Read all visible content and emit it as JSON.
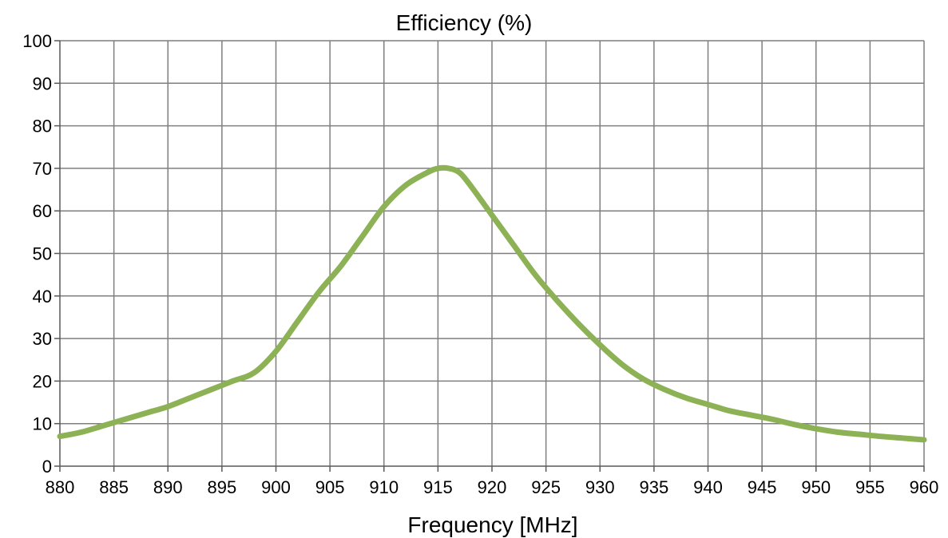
{
  "chart_data": {
    "type": "line",
    "title": "Efficiency (%)",
    "xlabel": "Frequency [MHz]",
    "ylabel": "",
    "xlim": [
      880,
      960
    ],
    "ylim": [
      0,
      100
    ],
    "x_ticks": [
      880,
      885,
      890,
      895,
      900,
      905,
      910,
      915,
      920,
      925,
      930,
      935,
      940,
      945,
      950,
      955,
      960
    ],
    "y_ticks": [
      0,
      10,
      20,
      30,
      40,
      50,
      60,
      70,
      80,
      90,
      100
    ],
    "grid": true,
    "series": [
      {
        "color": "#8db255",
        "x": [
          880,
          882,
          884,
          886,
          888,
          890,
          892,
          894,
          896,
          898,
          900,
          902,
          904,
          906,
          908,
          910,
          912,
          914,
          915,
          916,
          917,
          918,
          920,
          922,
          924,
          926,
          928,
          930,
          932,
          934,
          936,
          938,
          940,
          942,
          944,
          946,
          948,
          950,
          952,
          954,
          956,
          958,
          960
        ],
        "y": [
          7,
          8,
          9.5,
          11,
          12.5,
          14,
          16,
          18,
          20,
          22,
          27,
          34,
          41,
          47,
          54,
          61,
          66,
          69,
          70,
          70,
          69,
          66,
          59,
          52,
          45,
          39,
          33.5,
          28.5,
          24,
          20.5,
          18,
          16,
          14.5,
          13,
          12,
          11,
          9.8,
          8.8,
          8,
          7.5,
          7,
          6.6,
          6.2
        ]
      }
    ]
  }
}
